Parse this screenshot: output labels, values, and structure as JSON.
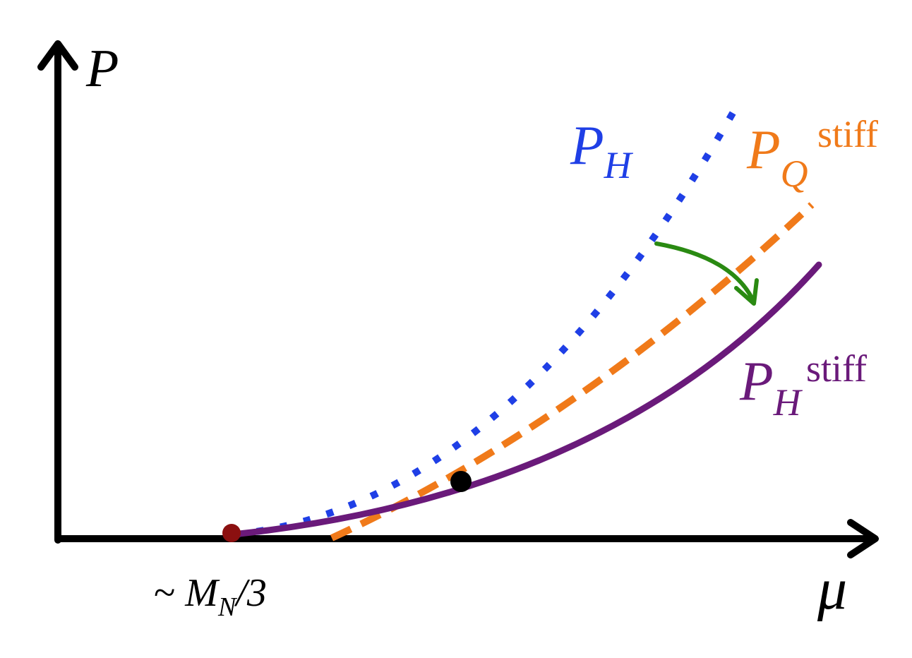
{
  "axes": {
    "y_label": "P",
    "x_label": "μ",
    "x_tick": {
      "prefix": "~ ",
      "main": "M",
      "sub": "N",
      "suffix": "/3"
    }
  },
  "curves": {
    "hadronic": {
      "main": "P",
      "sub": "H",
      "sup": "",
      "color": "#1f3fe6",
      "style": "dotted"
    },
    "quark_stiff": {
      "main": "P",
      "sub": "Q",
      "sup": "stiff",
      "color": "#f07a1a",
      "style": "dashed"
    },
    "hadronic_stiff": {
      "main": "P",
      "sub": "H",
      "sup": "stiff",
      "color": "#6a1a7a",
      "style": "solid"
    }
  },
  "markers": {
    "onset_color": "#8b1010",
    "crossing_color": "#000000"
  },
  "arrow": {
    "color": "#2a8a12"
  }
}
